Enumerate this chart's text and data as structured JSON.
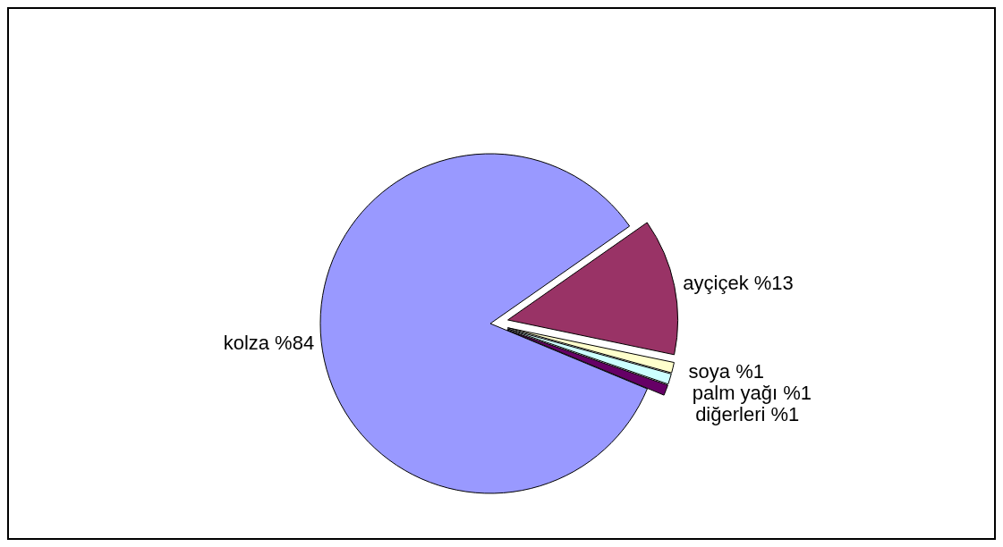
{
  "chart_data": {
    "type": "pie",
    "categories": [
      "ayçiçek",
      "soya",
      "palm yağı",
      "diğerleri",
      "kolza"
    ],
    "values": [
      13,
      1,
      1,
      1,
      84
    ],
    "value_labels": [
      "%13",
      "%1",
      "%1",
      "%1",
      "%84"
    ],
    "colors": [
      "#993366",
      "#ffffcc",
      "#ccffff",
      "#660066",
      "#9999ff"
    ],
    "legend": false
  }
}
